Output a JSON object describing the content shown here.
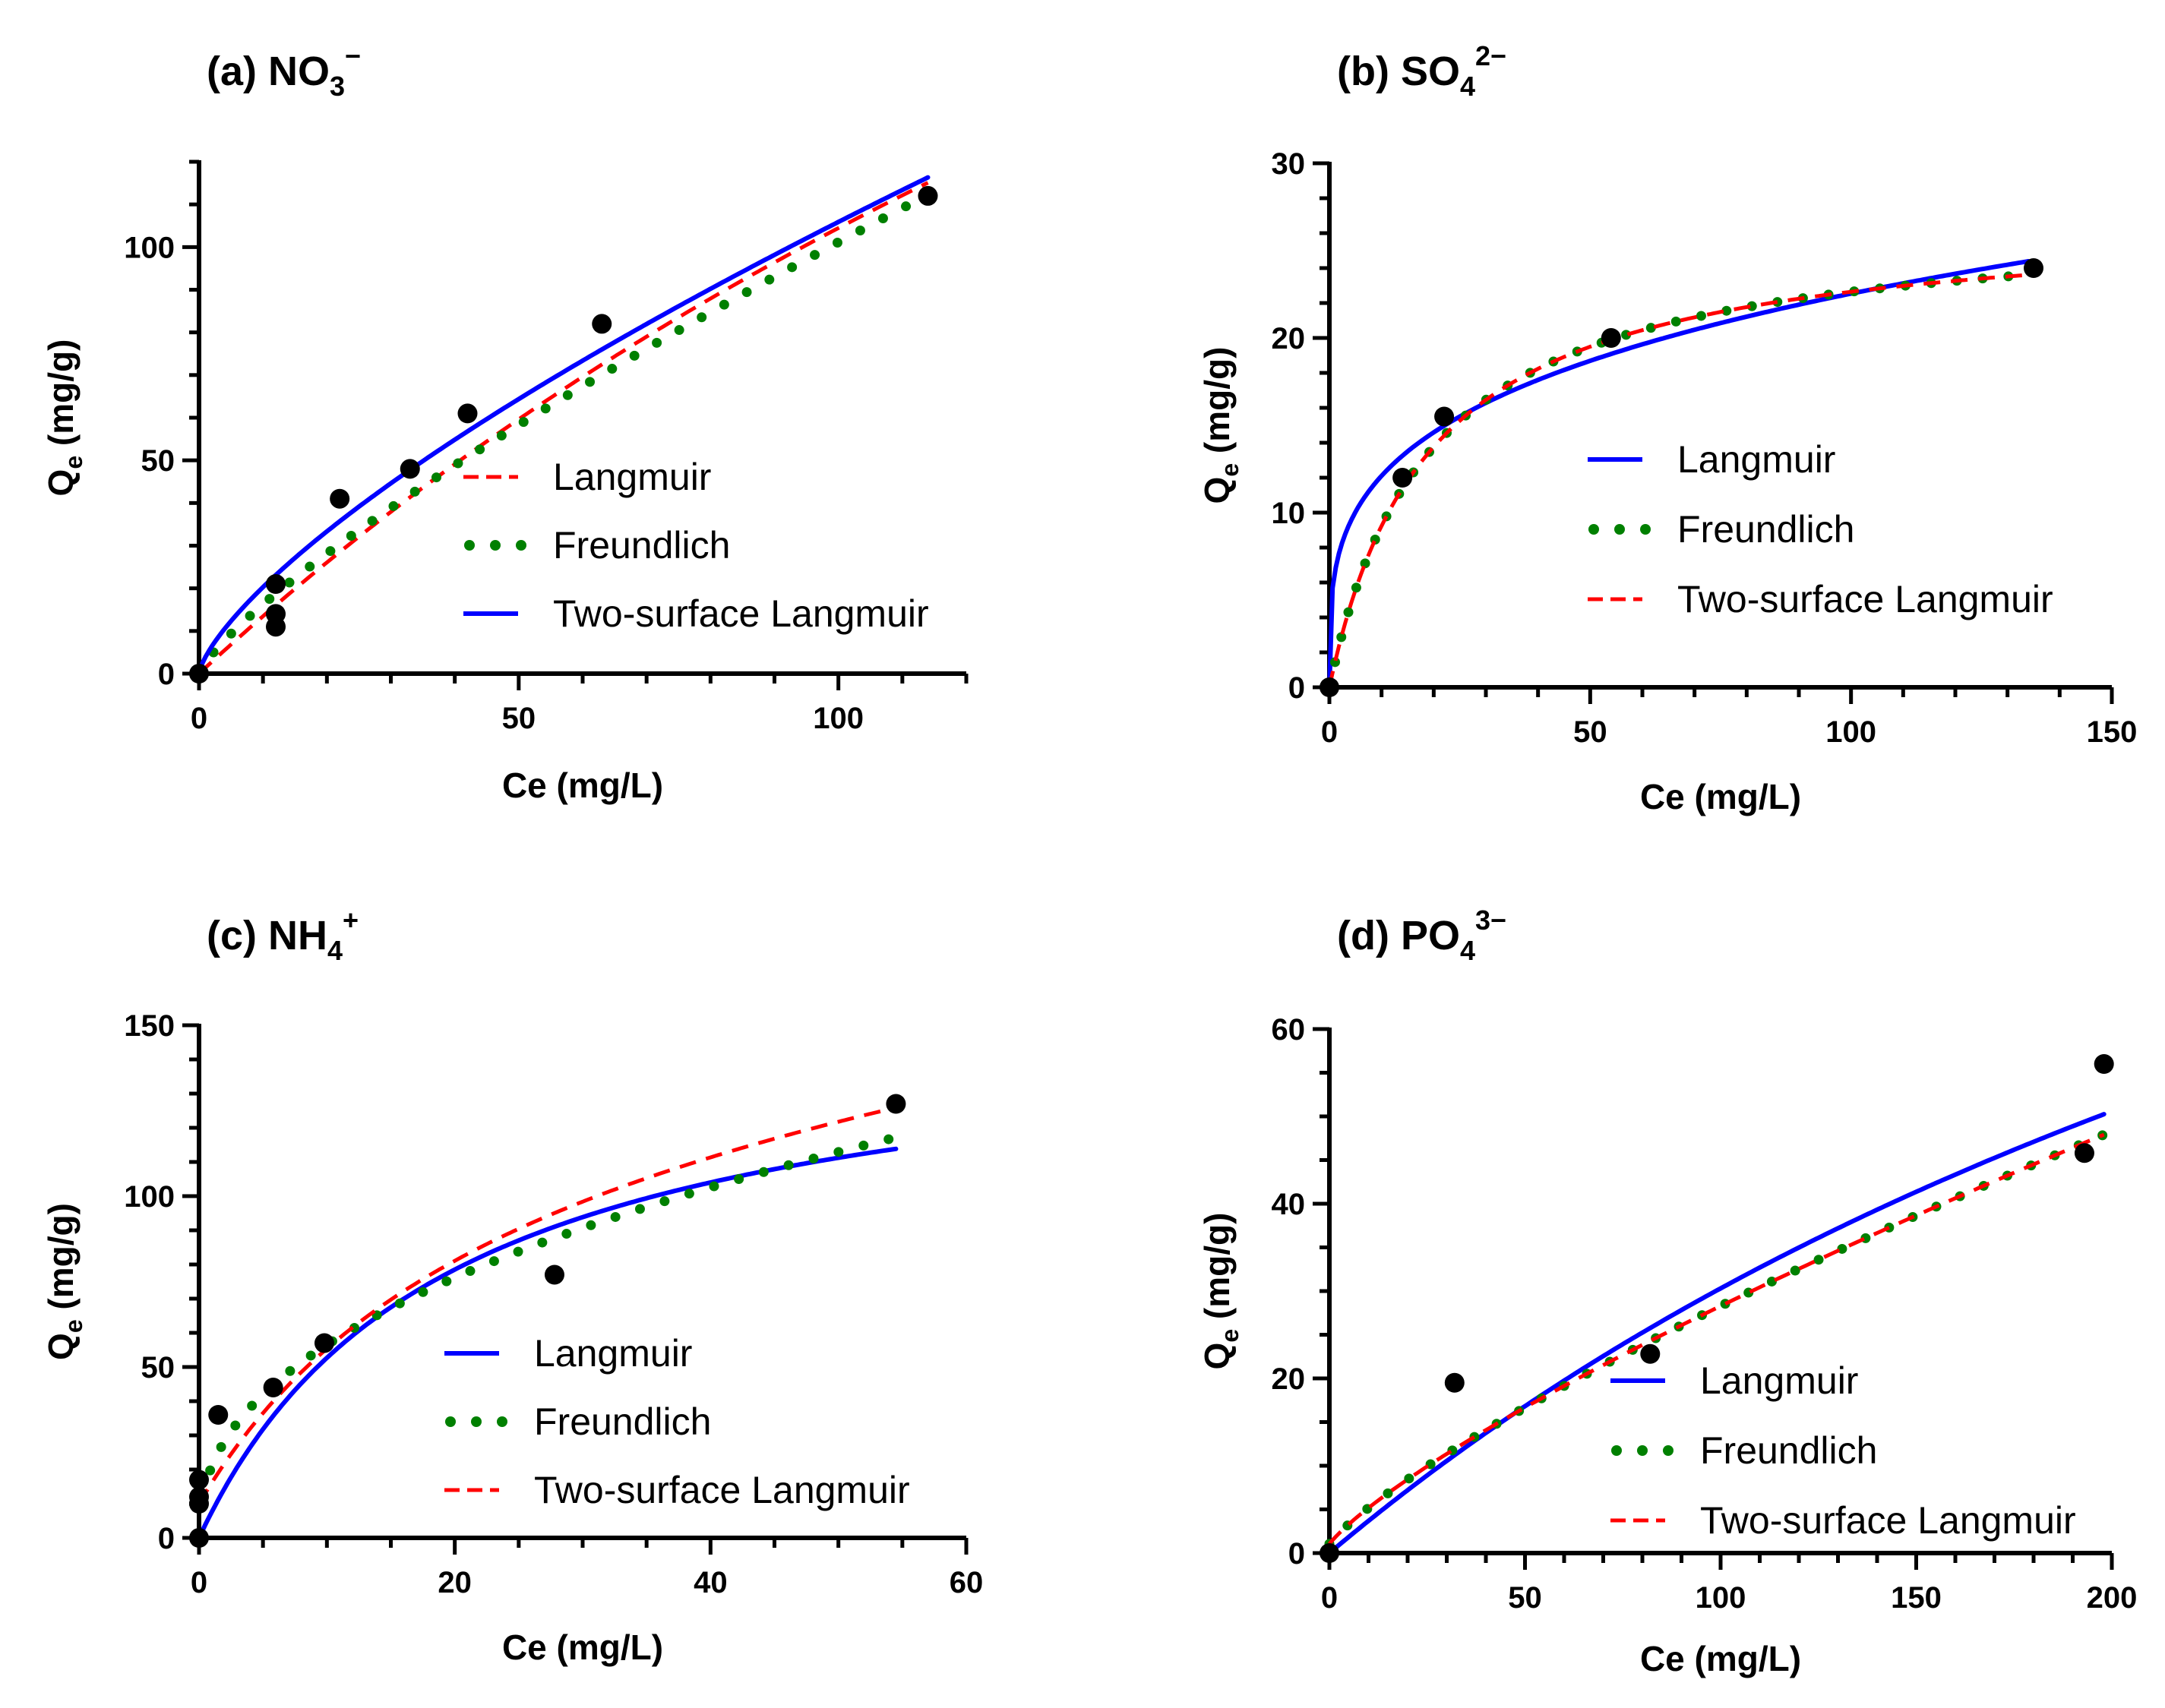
{
  "figure": {
    "panels": 4,
    "layout": "2x2 grid"
  },
  "chart_data": [
    {
      "id": "a",
      "type": "scatter",
      "title": {
        "prefix": "(a) NO",
        "sub": "3",
        "sup": "−"
      },
      "xlabel": "Ce (mg/L)",
      "ylabel": {
        "main": "Q",
        "sub": "e",
        "rest": " (mg/g)"
      },
      "xlim": [
        0,
        120
      ],
      "ylim": [
        0,
        120
      ],
      "xticks": [
        0,
        50,
        100
      ],
      "yticks": [
        0,
        50,
        100
      ],
      "xminor": 10,
      "yminor": 10,
      "legend": {
        "placement": "center-right",
        "entries": [
          {
            "label": "Langmuir",
            "style": "dashed",
            "color": "#ff0000"
          },
          {
            "label": "Freundlich",
            "style": "dotted",
            "color": "#008000"
          },
          {
            "label": "Two-surface Langmuir",
            "style": "solid",
            "color": "#0000ff"
          }
        ]
      },
      "points": {
        "x": [
          0,
          12,
          12,
          12,
          22,
          33,
          42,
          63,
          114
        ],
        "y": [
          0,
          11,
          14,
          21,
          41,
          48,
          61,
          82,
          112
        ]
      },
      "series": [
        {
          "name": "Langmuir",
          "style": "dashed",
          "color": "#ff0000",
          "model": {
            "kind": "langmuir",
            "qmax": 421,
            "k": 0.0033
          },
          "domain": [
            0,
            114
          ]
        },
        {
          "name": "Freundlich",
          "style": "dotted",
          "color": "#008000",
          "model": {
            "kind": "freundlich",
            "kf": 2.6,
            "n": 0.795
          },
          "domain": [
            0,
            114
          ]
        },
        {
          "name": "Two-surface Langmuir",
          "style": "solid",
          "color": "#0000ff",
          "model": {
            "kind": "freundlich",
            "kf": 3.88,
            "n": 0.718
          },
          "domain": [
            0,
            114
          ]
        }
      ]
    },
    {
      "id": "b",
      "type": "scatter",
      "title": {
        "prefix": "(b) SO",
        "sub": "4",
        "sup": "2−"
      },
      "xlabel": "Ce (mg/L)",
      "ylabel": {
        "main": "Q",
        "sub": "e",
        "rest": " (mg/g)"
      },
      "xlim": [
        0,
        150
      ],
      "ylim": [
        0,
        30
      ],
      "xticks": [
        0,
        50,
        100,
        150
      ],
      "yticks": [
        0,
        10,
        20,
        30
      ],
      "xminor": 10,
      "yminor": 2,
      "legend": {
        "placement": "center-right",
        "entries": [
          {
            "label": "Langmuir",
            "style": "solid",
            "color": "#0000ff"
          },
          {
            "label": "Freundlich",
            "style": "dotted",
            "color": "#008000"
          },
          {
            "label": "Two-surface Langmuir",
            "style": "dashed",
            "color": "#ff0000"
          }
        ]
      },
      "points": {
        "x": [
          0,
          14,
          22,
          54,
          135
        ],
        "y": [
          0,
          12,
          15.5,
          20,
          24
        ]
      },
      "series": [
        {
          "name": "Langmuir",
          "style": "solid",
          "color": "#0000ff",
          "model": {
            "kind": "freundlich",
            "kf": 6.5,
            "n": 0.27
          },
          "domain": [
            0,
            134
          ]
        },
        {
          "name": "Freundlich",
          "style": "dotted",
          "color": "#008000",
          "model": {
            "kind": "langmuir",
            "qmax": 27,
            "k": 0.052
          },
          "domain": [
            0,
            134
          ]
        },
        {
          "name": "Two-surface Langmuir",
          "style": "dashed",
          "color": "#ff0000",
          "model": {
            "kind": "langmuir",
            "qmax": 27,
            "k": 0.052
          },
          "domain": [
            0,
            134
          ]
        }
      ]
    },
    {
      "id": "c",
      "type": "scatter",
      "title": {
        "prefix": "(c) NH",
        "sub": "4",
        "sup": "+"
      },
      "xlabel": "Ce (mg/L)",
      "ylabel": {
        "main": "Q",
        "sub": "e",
        "rest": " (mg/g)"
      },
      "xlim": [
        0,
        60
      ],
      "ylim": [
        0,
        150
      ],
      "xticks": [
        0,
        20,
        40,
        60
      ],
      "yticks": [
        0,
        50,
        100,
        150
      ],
      "xminor": 5,
      "yminor": 10,
      "legend": {
        "placement": "bottom-right",
        "entries": [
          {
            "label": "Langmuir",
            "style": "solid",
            "color": "#0000ff"
          },
          {
            "label": "Freundlich",
            "style": "dotted",
            "color": "#008000"
          },
          {
            "label": "Two-surface Langmuir",
            "style": "dashed",
            "color": "#ff0000"
          }
        ]
      },
      "points": {
        "x": [
          0,
          0,
          0,
          0,
          1.5,
          5.8,
          9.8,
          27.8,
          54.5
        ],
        "y": [
          0,
          10,
          12,
          17,
          36,
          44,
          57,
          77,
          127
        ]
      },
      "series": [
        {
          "name": "Langmuir",
          "style": "solid",
          "color": "#0000ff",
          "model": {
            "kind": "langmuir",
            "qmax": 154,
            "k": 0.052
          },
          "domain": [
            0,
            54.5
          ]
        },
        {
          "name": "Freundlich",
          "style": "dotted",
          "color": "#008000",
          "model": {
            "kind": "freundlich",
            "kf": 21,
            "n": 0.43
          },
          "domain": [
            0.3,
            54.5
          ]
        },
        {
          "name": "Two-surface Langmuir",
          "style": "dashed",
          "color": "#ff0000",
          "model": {
            "kind": "langmuir_plus",
            "qmax": 134,
            "k": 0.045,
            "q0": 10,
            "slope": 0.38
          },
          "domain": [
            0,
            54.5
          ]
        }
      ]
    },
    {
      "id": "d",
      "type": "scatter",
      "title": {
        "prefix": "(d) PO",
        "sub": "4",
        "sup": "3−"
      },
      "xlabel": "Ce (mg/L)",
      "ylabel": {
        "main": "Q",
        "sub": "e",
        "rest": " (mg/g)"
      },
      "xlim": [
        0,
        200
      ],
      "ylim": [
        0,
        60
      ],
      "xticks": [
        0,
        50,
        100,
        150,
        200
      ],
      "yticks": [
        0,
        20,
        40,
        60
      ],
      "xminor": 10,
      "yminor": 5,
      "legend": {
        "placement": "bottom-right",
        "entries": [
          {
            "label": "Langmuir",
            "style": "solid",
            "color": "#0000ff"
          },
          {
            "label": "Freundlich",
            "style": "dotted",
            "color": "#008000"
          },
          {
            "label": "Two-surface Langmuir",
            "style": "dashed",
            "color": "#ff0000"
          }
        ]
      },
      "points": {
        "x": [
          0,
          32,
          82,
          193,
          198
        ],
        "y": [
          0,
          19.5,
          22.8,
          45.8,
          56
        ]
      },
      "series": [
        {
          "name": "Langmuir",
          "style": "solid",
          "color": "#0000ff",
          "model": {
            "kind": "langmuir",
            "qmax": 153,
            "k": 0.00247
          },
          "domain": [
            0,
            198
          ]
        },
        {
          "name": "Freundlich",
          "style": "dotted",
          "color": "#008000",
          "model": {
            "kind": "freundlich_plus",
            "kf": 0.77,
            "n": 0.78,
            "c0": 1.5
          },
          "domain": [
            0,
            198
          ]
        },
        {
          "name": "Two-surface Langmuir",
          "style": "dashed",
          "color": "#ff0000",
          "model": {
            "kind": "freundlich_plus",
            "kf": 0.77,
            "n": 0.78,
            "c0": 1.5
          },
          "domain": [
            0,
            198
          ]
        }
      ]
    }
  ]
}
